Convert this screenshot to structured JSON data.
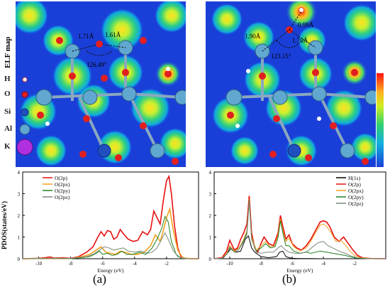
{
  "elf_label": "ELF map",
  "legend": [
    {
      "symbol": "H",
      "color": "#ffffff",
      "edge": "#d94040",
      "r": 3
    },
    {
      "symbol": "O",
      "color": "#e02020",
      "edge": "#a00000",
      "r": 4
    },
    {
      "symbol": "Si",
      "color": "#2050c0",
      "edge": "#102880",
      "r": 5
    },
    {
      "symbol": "Al",
      "color": "#60a8d0",
      "edge": "#306080",
      "r": 7
    },
    {
      "symbol": "K",
      "color": "#b030e0",
      "edge": "#601080",
      "r": 11
    }
  ],
  "panel_a_annotations": {
    "d1": "1.71Å",
    "d2": "1.61Å",
    "angle": "126.49°"
  },
  "panel_b_annotations": {
    "d1": "1.90Å",
    "d2": "1.70Å",
    "d3": "0.99Å",
    "angle": "123.15°"
  },
  "captions": {
    "a": "(a)",
    "b": "(b)"
  },
  "ylabel": "PDOS(states/eV)",
  "chart_data": [
    {
      "type": "line",
      "panel": "a",
      "xlabel": "Energy (eV)",
      "ylabel": "PDOS(states/eV)",
      "xlim": [
        -11,
        0
      ],
      "ylim": [
        0,
        4
      ],
      "xticks": [
        "-10",
        "-8",
        "-6",
        "-4",
        "-2"
      ],
      "yticks": [
        "0",
        "1",
        "2",
        "3",
        "4"
      ],
      "legend_position": "top-left",
      "series": [
        {
          "name": "O(2p)",
          "color": "#e81010",
          "x": [
            -11,
            -10,
            -9.6,
            -9.3,
            -9,
            -8.5,
            -8,
            -7.5,
            -7,
            -6.6,
            -6.3,
            -6.1,
            -5.9,
            -5.7,
            -5.5,
            -5.3,
            -5.1,
            -4.9,
            -4.7,
            -4.4,
            -4.1,
            -3.8,
            -3.5,
            -3.2,
            -3.0,
            -2.8,
            -2.6,
            -2.4,
            -2.2,
            -2.0,
            -1.85,
            -1.7,
            -1.5,
            -1.3,
            -1.1,
            -0.9,
            -0.5,
            0
          ],
          "y": [
            0,
            0.02,
            0.05,
            0.08,
            0.03,
            0.05,
            0.02,
            0.1,
            0.3,
            0.55,
            1.0,
            1.25,
            1.05,
            1.3,
            1.25,
            0.9,
            1.0,
            1.35,
            1.15,
            0.9,
            0.8,
            0.85,
            1.25,
            1.1,
            1.35,
            2.2,
            1.9,
            1.6,
            2.7,
            3.6,
            3.8,
            3.0,
            1.5,
            0.5,
            0.1,
            0.03,
            0,
            0
          ]
        },
        {
          "name": "O(2px)",
          "color": "#f0a020",
          "x": [
            -11,
            -10,
            -9,
            -8,
            -7.3,
            -6.8,
            -6.4,
            -6.1,
            -5.8,
            -5.5,
            -5.2,
            -4.9,
            -4.6,
            -4.2,
            -3.8,
            -3.4,
            -3.0,
            -2.7,
            -2.4,
            -2.2,
            -2.0,
            -1.8,
            -1.6,
            -1.3,
            -1.0,
            -0.6,
            0
          ],
          "y": [
            0,
            0.01,
            0.02,
            0.01,
            0.1,
            0.2,
            0.4,
            0.55,
            0.3,
            0.25,
            0.2,
            0.35,
            0.3,
            0.2,
            0.2,
            0.3,
            0.6,
            1.1,
            0.8,
            1.3,
            1.9,
            2.3,
            1.4,
            0.4,
            0.05,
            0,
            0
          ]
        },
        {
          "name": "O(2py)",
          "color": "#208020",
          "x": [
            -11,
            -10,
            -9,
            -8,
            -7.3,
            -6.8,
            -6.4,
            -6.2,
            -6.0,
            -5.7,
            -5.4,
            -5.1,
            -4.8,
            -4.5,
            -4.1,
            -3.7,
            -3.3,
            -2.9,
            -2.6,
            -2.3,
            -2.1,
            -1.9,
            -1.7,
            -1.4,
            -1.1,
            -0.7,
            0
          ],
          "y": [
            0,
            0.01,
            0.02,
            0.01,
            0.05,
            0.1,
            0.25,
            0.35,
            0.2,
            0.25,
            0.15,
            0.2,
            0.35,
            0.2,
            0.2,
            0.3,
            0.2,
            0.5,
            0.9,
            1.4,
            1.95,
            1.7,
            0.8,
            0.2,
            0.03,
            0,
            0
          ]
        },
        {
          "name": "O(2pz)",
          "color": "#7a8a7a",
          "x": [
            -11,
            -10,
            -9,
            -8,
            -7.5,
            -7,
            -6.6,
            -6.2,
            -5.9,
            -5.6,
            -5.3,
            -5.0,
            -4.7,
            -4.4,
            -4.0,
            -3.6,
            -3.2,
            -2.9,
            -2.6,
            -2.3,
            -2.1,
            -1.9,
            -1.6,
            -1.3,
            -1.0,
            -0.6,
            0
          ],
          "y": [
            0,
            0.01,
            0.02,
            0.02,
            0.05,
            0.1,
            0.2,
            0.4,
            0.55,
            0.5,
            0.4,
            0.45,
            0.5,
            0.35,
            0.3,
            0.35,
            0.25,
            0.3,
            0.5,
            0.9,
            1.2,
            0.9,
            0.4,
            0.1,
            0.02,
            0,
            0
          ]
        }
      ]
    },
    {
      "type": "line",
      "panel": "b",
      "xlabel": "Energy (eV)",
      "xlim": [
        -11,
        0
      ],
      "ylim": [
        0,
        4
      ],
      "xticks": [
        "-10",
        "-8",
        "-6",
        "-4",
        "-2"
      ],
      "yticks": [
        "0",
        "1",
        "2",
        "3",
        "4"
      ],
      "legend_position": "top-right",
      "series": [
        {
          "name": "H(1s)",
          "color": "#000000",
          "x": [
            -11,
            -10.4,
            -10.1,
            -9.9,
            -9.6,
            -9.3,
            -9.0,
            -8.8,
            -8.6,
            -8.4,
            -8.0,
            -7.5,
            -7.0,
            -6.8,
            -6.6,
            -6.4,
            -6.2,
            -6.0,
            -5.6,
            -5.0,
            -4.0,
            -3.0,
            0
          ],
          "y": [
            0,
            0.05,
            0.3,
            0.5,
            0.3,
            0.35,
            0.9,
            1.05,
            0.5,
            0.3,
            0.1,
            0.05,
            0.1,
            0.3,
            0.35,
            0.1,
            0.05,
            0.02,
            0.01,
            0.01,
            0,
            0,
            0
          ]
        },
        {
          "name": "O(2p)",
          "color": "#e81010",
          "x": [
            -11,
            -10.5,
            -10.2,
            -10.0,
            -9.7,
            -9.5,
            -9.3,
            -9.1,
            -8.9,
            -8.75,
            -8.6,
            -8.4,
            -8.2,
            -8.0,
            -7.8,
            -7.5,
            -7.2,
            -6.9,
            -6.75,
            -6.6,
            -6.4,
            -6.2,
            -6.0,
            -5.7,
            -5.4,
            -5.1,
            -4.8,
            -4.5,
            -4.2,
            -4.0,
            -3.8,
            -3.6,
            -3.3,
            -3.0,
            -2.7,
            -2.4,
            -2.1,
            -1.8,
            -1.5,
            -1.0,
            0
          ],
          "y": [
            0,
            0.05,
            0.35,
            0.85,
            0.4,
            0.5,
            0.9,
            1.2,
            1.6,
            2.9,
            1.2,
            0.5,
            0.3,
            0.7,
            1.0,
            0.7,
            0.6,
            1.2,
            2.0,
            1.5,
            0.9,
            1.1,
            0.7,
            0.5,
            0.4,
            0.6,
            0.9,
            1.3,
            1.7,
            1.75,
            1.7,
            1.5,
            1.0,
            0.8,
            1.0,
            0.7,
            0.4,
            0.15,
            0.05,
            0.01,
            0
          ]
        },
        {
          "name": "O(2px)",
          "color": "#f0a020",
          "x": [
            -11,
            -10.5,
            -10.2,
            -10.0,
            -9.7,
            -9.4,
            -9.1,
            -8.9,
            -8.75,
            -8.6,
            -8.3,
            -8.0,
            -7.7,
            -7.4,
            -7.1,
            -6.9,
            -6.75,
            -6.6,
            -6.4,
            -6.2,
            -5.9,
            -5.5,
            -5.1,
            -4.8,
            -4.5,
            -4.2,
            -4.0,
            -3.8,
            -3.5,
            -3.2,
            -2.9,
            -2.6,
            -2.3,
            -2.0,
            -1.6,
            -1.0,
            0
          ],
          "y": [
            0,
            0.03,
            0.25,
            0.6,
            0.35,
            0.5,
            0.9,
            1.3,
            2.75,
            1.0,
            0.4,
            0.6,
            0.8,
            0.55,
            0.6,
            1.1,
            1.85,
            1.3,
            0.8,
            0.95,
            0.55,
            0.35,
            0.5,
            0.8,
            1.2,
            1.55,
            1.6,
            1.5,
            1.2,
            0.8,
            0.85,
            0.65,
            0.35,
            0.15,
            0.05,
            0.01,
            0
          ]
        },
        {
          "name": "O(2py)",
          "color": "#208020",
          "x": [
            -11,
            -10.5,
            -10.2,
            -10.0,
            -9.7,
            -9.4,
            -9.1,
            -8.9,
            -8.75,
            -8.6,
            -8.3,
            -8.0,
            -7.7,
            -7.4,
            -7.1,
            -6.9,
            -6.75,
            -6.6,
            -6.4,
            -6.2,
            -5.9,
            -5.5,
            -5.1,
            -4.8,
            -4.5,
            -4.2,
            -3.8,
            -3.4,
            -3.0,
            -2.6,
            -2.2,
            -1.8,
            -1.2,
            0
          ],
          "y": [
            0,
            0.02,
            0.2,
            0.5,
            0.3,
            0.45,
            0.85,
            1.2,
            2.7,
            0.9,
            0.35,
            0.5,
            0.7,
            0.5,
            0.55,
            1.0,
            1.75,
            1.2,
            0.6,
            0.6,
            0.35,
            0.25,
            0.3,
            0.25,
            0.3,
            0.35,
            0.3,
            0.25,
            0.2,
            0.15,
            0.08,
            0.03,
            0.01,
            0
          ]
        },
        {
          "name": "O(2pz)",
          "color": "#7a8a7a",
          "x": [
            -11,
            -10.5,
            -10.2,
            -10.0,
            -9.7,
            -9.4,
            -9.1,
            -8.9,
            -8.75,
            -8.6,
            -8.3,
            -8.0,
            -7.6,
            -7.2,
            -6.9,
            -6.7,
            -6.5,
            -6.2,
            -5.8,
            -5.4,
            -5.0,
            -4.6,
            -4.3,
            -4.0,
            -3.7,
            -3.4,
            -3.0,
            -2.6,
            -2.2,
            -1.8,
            -1.2,
            0
          ],
          "y": [
            0,
            0.02,
            0.2,
            0.55,
            0.3,
            0.45,
            0.8,
            1.1,
            2.65,
            0.9,
            0.3,
            0.25,
            0.3,
            0.3,
            0.5,
            0.6,
            0.45,
            0.3,
            0.25,
            0.25,
            0.35,
            0.6,
            0.75,
            0.8,
            0.6,
            0.5,
            0.35,
            0.25,
            0.12,
            0.04,
            0.01,
            0
          ]
        }
      ]
    }
  ]
}
